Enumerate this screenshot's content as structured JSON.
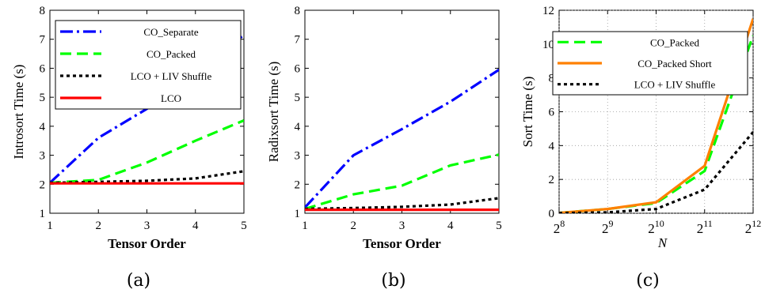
{
  "chart_data": [
    {
      "type": "line",
      "panel": "(a)",
      "xlabel": "Tensor Order",
      "ylabel": "Introsort Time (s)",
      "xlim": [
        1,
        5
      ],
      "ylim": [
        1,
        8
      ],
      "xticks": [
        "1",
        "2",
        "3",
        "4",
        "5"
      ],
      "yticks": [
        "1",
        "2",
        "3",
        "4",
        "5",
        "6",
        "7",
        "8"
      ],
      "grid": false,
      "legend": "top-right",
      "x": [
        1,
        2,
        3,
        4,
        5
      ],
      "series": [
        {
          "name": "CO_Separate",
          "color": "#0000ff",
          "dash": "dash-dot",
          "values": [
            2.05,
            3.6,
            4.6,
            5.85,
            7.15
          ]
        },
        {
          "name": "CO_Packed",
          "color": "#00ff00",
          "dash": "dashed",
          "values": [
            2.05,
            2.15,
            2.75,
            3.5,
            4.2
          ]
        },
        {
          "name": "LCO + LIV Shuffle",
          "color": "#000000",
          "dash": "dotted",
          "values": [
            2.05,
            2.08,
            2.12,
            2.2,
            2.45
          ]
        },
        {
          "name": "LCO",
          "color": "#ff0000",
          "dash": "solid",
          "values": [
            2.03,
            2.03,
            2.03,
            2.03,
            2.03
          ]
        }
      ]
    },
    {
      "type": "line",
      "panel": "(b)",
      "xlabel": "Tensor Order",
      "ylabel": "Radixsort Time (s)",
      "xlim": [
        1,
        5
      ],
      "ylim": [
        1,
        8
      ],
      "xticks": [
        "1",
        "2",
        "3",
        "4",
        "5"
      ],
      "yticks": [
        "1",
        "2",
        "3",
        "4",
        "5",
        "6",
        "7",
        "8"
      ],
      "grid": false,
      "x": [
        1,
        2,
        3,
        4,
        5
      ],
      "series": [
        {
          "color": "#0000ff",
          "dash": "dash-dot",
          "values": [
            1.2,
            3.0,
            3.9,
            4.85,
            5.95
          ]
        },
        {
          "color": "#00ff00",
          "dash": "dashed",
          "values": [
            1.15,
            1.65,
            1.95,
            2.65,
            3.02
          ]
        },
        {
          "color": "#000000",
          "dash": "dotted",
          "values": [
            1.15,
            1.18,
            1.22,
            1.3,
            1.52
          ]
        },
        {
          "color": "#ff0000",
          "dash": "solid",
          "values": [
            1.12,
            1.12,
            1.12,
            1.12,
            1.12
          ]
        }
      ]
    },
    {
      "type": "line",
      "panel": "(c)",
      "xlabel": "N",
      "ylabel": "Sort Time (s)",
      "xscale": "log2",
      "xlim": [
        256,
        4096
      ],
      "ylim": [
        0,
        12
      ],
      "xticks": [
        "2",
        "2",
        "2",
        "2",
        "2"
      ],
      "xtick_exponents": [
        "8",
        "9",
        "10",
        "11",
        "12"
      ],
      "yticks": [
        "0",
        "2",
        "4",
        "6",
        "8",
        "10",
        "12"
      ],
      "grid": true,
      "legend": "top-left",
      "x": [
        256,
        512,
        1024,
        2048,
        4096
      ],
      "series": [
        {
          "name": "CO_Packed",
          "color": "#00ff00",
          "dash": "dashed",
          "values": [
            0.02,
            0.25,
            0.6,
            2.5,
            10.5
          ]
        },
        {
          "name": "CO_Packed Short",
          "color": "#ff8000",
          "dash": "solid",
          "values": [
            0.02,
            0.25,
            0.65,
            2.8,
            11.5
          ]
        },
        {
          "name": "LCO + LIV Shuffle",
          "color": "#000000",
          "dash": "dotted",
          "values": [
            0.01,
            0.05,
            0.25,
            1.4,
            4.8
          ]
        }
      ]
    }
  ],
  "captions": [
    "(a)",
    "(b)",
    "(c)"
  ]
}
